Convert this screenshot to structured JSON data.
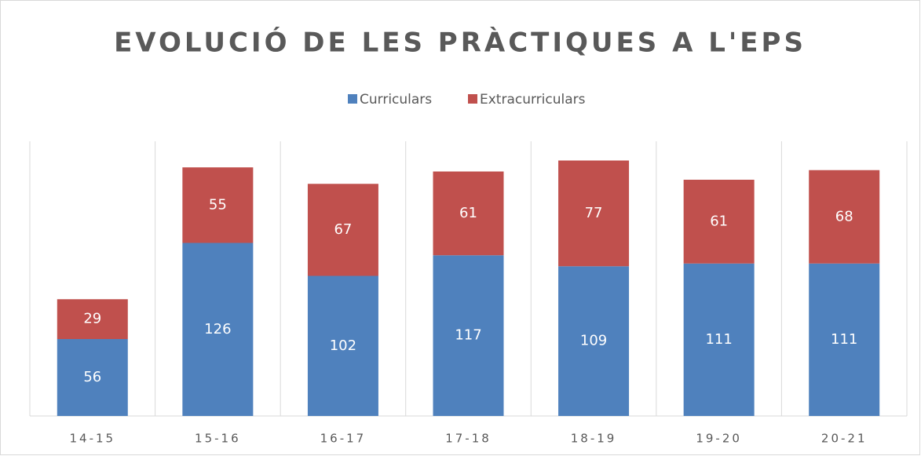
{
  "chart_data": {
    "type": "stacked_bar",
    "title": "EVOLUCIÓ DE LES PRÀCTIQUES A L'EPS",
    "categories": [
      "14-15",
      "15-16",
      "16-17",
      "17-18",
      "18-19",
      "19-20",
      "20-21"
    ],
    "series": [
      {
        "name": "Curriculars",
        "color": "#4f81bd",
        "values": [
          56,
          126,
          102,
          117,
          109,
          111,
          111
        ]
      },
      {
        "name": "Extracurriculars",
        "color": "#c0504d",
        "values": [
          29,
          55,
          67,
          61,
          77,
          61,
          68
        ]
      }
    ],
    "ylim": [
      0,
      200
    ],
    "legend": "top"
  }
}
